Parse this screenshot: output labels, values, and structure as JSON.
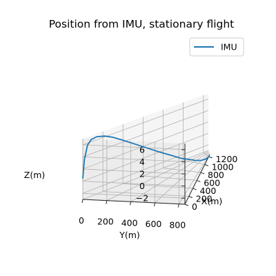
{
  "chart_data": {
    "type": "line3d",
    "title": "Position from IMU, stationary flight",
    "xlabel": "X(m)",
    "ylabel": "Y(m)",
    "zlabel": "Z(m)",
    "xlim": [
      0,
      1250
    ],
    "ylim": [
      0,
      850
    ],
    "zlim": [
      -3,
      7
    ],
    "x_ticks": [
      0,
      200,
      400,
      600,
      800,
      1000,
      1200
    ],
    "x_tick_labels": [
      "0",
      "200",
      "400",
      "600",
      "800",
      "1000",
      "1200"
    ],
    "y_ticks": [
      0,
      200,
      400,
      600,
      800
    ],
    "y_tick_labels": [
      "0",
      "200",
      "400",
      "600",
      "800"
    ],
    "z_ticks": [
      -2,
      0,
      2,
      4,
      6
    ],
    "z_tick_labels": [
      "−2",
      "0",
      "2",
      "4",
      "6"
    ],
    "legend": {
      "entries": [
        "IMU"
      ],
      "location": "upper right"
    },
    "grid": true,
    "series": [
      {
        "name": "IMU",
        "color": "#1f77b4",
        "x": [
          0,
          10,
          30,
          50,
          80,
          120,
          160,
          220,
          300,
          400,
          500,
          600,
          700,
          800,
          900,
          1000,
          1100,
          1200
        ],
        "y": [
          0,
          5,
          15,
          30,
          55,
          90,
          130,
          180,
          240,
          310,
          370,
          440,
          510,
          580,
          650,
          720,
          790,
          860
        ],
        "z": [
          0.5,
          3.5,
          5.8,
          6.6,
          6.9,
          6.8,
          6.4,
          5.6,
          4.5,
          3.2,
          2.0,
          0.9,
          -0.2,
          -1.0,
          -1.8,
          -2.4,
          -2.8,
          -3.0
        ]
      }
    ]
  }
}
